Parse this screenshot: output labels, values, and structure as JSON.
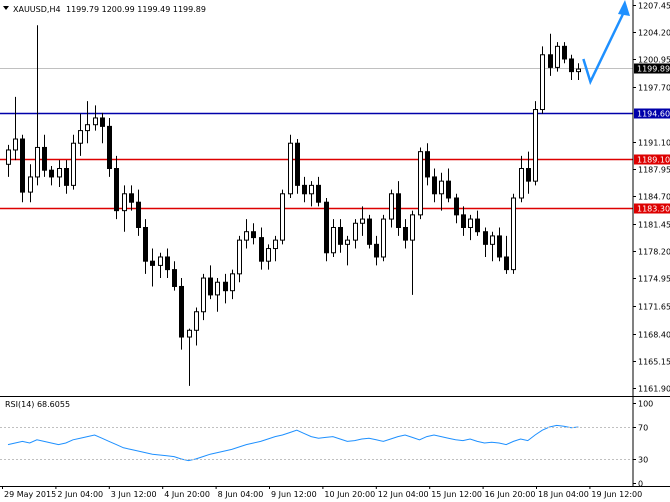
{
  "header": {
    "symbol": "XAUUSD,H4",
    "ohlc": "1199.79 1200.99 1199.49 1199.89"
  },
  "chart_data": {
    "type": "candlestick",
    "price_ticks": [
      "1207.45",
      "1204.20",
      "1200.95",
      "1197.70",
      "1191.10",
      "1187.95",
      "1184.70",
      "1181.45",
      "1178.20",
      "1174.95",
      "1171.65",
      "1168.40",
      "1165.15",
      "1161.90"
    ],
    "ylim": [
      1161.0,
      1208.0
    ],
    "current_price": {
      "label": "1199.89",
      "value": 1199.89
    },
    "levels": [
      {
        "label": "1194.60",
        "value": 1194.6,
        "color": "#0000aa"
      },
      {
        "label": "1189.10",
        "value": 1189.1,
        "color": "#dd0000"
      },
      {
        "label": "1183.30",
        "value": 1183.3,
        "color": "#dd0000"
      }
    ],
    "time_labels": [
      "29 May 2015",
      "2 Jun 04:00",
      "3 Jun 12:00",
      "4 Jun 20:00",
      "8 Jun 04:00",
      "9 Jun 12:00",
      "10 Jun 20:00",
      "12 Jun 04:00",
      "15 Jun 12:00",
      "16 Jun 20:00",
      "18 Jun 04:00",
      "19 Jun 12:00"
    ],
    "candles": [
      [
        1188.5,
        1190.8,
        1187.0,
        1190.2
      ],
      [
        1190.2,
        1196.5,
        1189.0,
        1191.5
      ],
      [
        1191.5,
        1192.0,
        1184.0,
        1185.2
      ],
      [
        1185.2,
        1188.5,
        1184.0,
        1187.0
      ],
      [
        1187.0,
        1205.0,
        1186.0,
        1190.5
      ],
      [
        1190.5,
        1192.0,
        1187.0,
        1187.8
      ],
      [
        1187.8,
        1188.3,
        1186.0,
        1187.0
      ],
      [
        1187.0,
        1189.0,
        1185.8,
        1188.0
      ],
      [
        1188.0,
        1189.0,
        1185.0,
        1186.0
      ],
      [
        1186.0,
        1192.0,
        1185.5,
        1191.0
      ],
      [
        1191.0,
        1194.5,
        1189.5,
        1192.5
      ],
      [
        1192.5,
        1196.0,
        1191.0,
        1193.2
      ],
      [
        1193.2,
        1195.5,
        1192.5,
        1194.0
      ],
      [
        1194.0,
        1194.6,
        1191.0,
        1193.0
      ],
      [
        1193.0,
        1194.0,
        1187.0,
        1188.0
      ],
      [
        1188.0,
        1189.5,
        1182.0,
        1183.0
      ],
      [
        1183.0,
        1186.0,
        1180.5,
        1185.0
      ],
      [
        1185.0,
        1186.0,
        1183.0,
        1184.0
      ],
      [
        1184.0,
        1185.5,
        1180.0,
        1181.0
      ],
      [
        1181.0,
        1182.0,
        1175.5,
        1177.0
      ],
      [
        1177.0,
        1178.5,
        1174.0,
        1176.5
      ],
      [
        1176.5,
        1178.0,
        1175.0,
        1177.5
      ],
      [
        1177.5,
        1178.5,
        1175.0,
        1176.0
      ],
      [
        1176.0,
        1177.0,
        1173.5,
        1174.0
      ],
      [
        1174.0,
        1175.0,
        1166.5,
        1168.0
      ],
      [
        1168.0,
        1169.0,
        1162.2,
        1168.8
      ],
      [
        1168.8,
        1171.5,
        1167.0,
        1171.0
      ],
      [
        1171.0,
        1175.5,
        1170.0,
        1175.0
      ],
      [
        1175.0,
        1176.5,
        1172.5,
        1173.0
      ],
      [
        1173.0,
        1175.0,
        1171.0,
        1174.5
      ],
      [
        1174.5,
        1175.5,
        1172.0,
        1173.5
      ],
      [
        1173.5,
        1176.0,
        1172.5,
        1175.5
      ],
      [
        1175.5,
        1180.0,
        1174.5,
        1179.5
      ],
      [
        1179.5,
        1182.0,
        1178.5,
        1180.5
      ],
      [
        1180.5,
        1181.5,
        1179.0,
        1179.8
      ],
      [
        1179.8,
        1181.0,
        1176.0,
        1177.0
      ],
      [
        1177.0,
        1179.0,
        1176.0,
        1178.5
      ],
      [
        1178.5,
        1180.0,
        1177.0,
        1179.5
      ],
      [
        1179.5,
        1185.5,
        1179.0,
        1185.0
      ],
      [
        1185.0,
        1192.0,
        1184.5,
        1191.0
      ],
      [
        1191.0,
        1191.5,
        1185.0,
        1186.0
      ],
      [
        1186.0,
        1187.0,
        1184.0,
        1185.0
      ],
      [
        1185.0,
        1186.5,
        1183.5,
        1186.0
      ],
      [
        1186.0,
        1187.0,
        1183.5,
        1184.0
      ],
      [
        1184.0,
        1184.5,
        1177.0,
        1178.0
      ],
      [
        1178.0,
        1182.0,
        1177.5,
        1181.0
      ],
      [
        1181.0,
        1182.0,
        1178.0,
        1179.0
      ],
      [
        1179.0,
        1180.0,
        1176.5,
        1179.5
      ],
      [
        1179.5,
        1182.0,
        1178.5,
        1181.5
      ],
      [
        1181.5,
        1183.5,
        1180.0,
        1182.0
      ],
      [
        1182.0,
        1182.5,
        1178.5,
        1179.0
      ],
      [
        1179.0,
        1180.0,
        1176.5,
        1177.5
      ],
      [
        1177.5,
        1182.5,
        1177.0,
        1182.0
      ],
      [
        1182.0,
        1185.5,
        1181.0,
        1185.0
      ],
      [
        1185.0,
        1186.5,
        1180.0,
        1181.0
      ],
      [
        1181.0,
        1182.0,
        1178.5,
        1179.5
      ],
      [
        1179.5,
        1183.0,
        1173.0,
        1182.5
      ],
      [
        1182.5,
        1190.5,
        1182.0,
        1190.0
      ],
      [
        1190.0,
        1191.0,
        1186.0,
        1187.0
      ],
      [
        1187.0,
        1188.0,
        1184.0,
        1185.0
      ],
      [
        1185.0,
        1187.5,
        1183.0,
        1186.5
      ],
      [
        1186.5,
        1188.0,
        1184.0,
        1184.5
      ],
      [
        1184.5,
        1185.0,
        1181.5,
        1182.5
      ],
      [
        1182.5,
        1183.5,
        1180.0,
        1181.0
      ],
      [
        1181.0,
        1182.5,
        1179.5,
        1182.0
      ],
      [
        1182.0,
        1183.0,
        1180.0,
        1180.5
      ],
      [
        1180.5,
        1181.0,
        1177.5,
        1179.0
      ],
      [
        1179.0,
        1180.5,
        1177.0,
        1180.0
      ],
      [
        1180.0,
        1181.0,
        1177.0,
        1177.5
      ],
      [
        1177.5,
        1180.0,
        1175.5,
        1176.0
      ],
      [
        1176.0,
        1185.0,
        1175.5,
        1184.5
      ],
      [
        1184.5,
        1189.5,
        1184.0,
        1188.0
      ],
      [
        1188.0,
        1190.0,
        1185.0,
        1186.5
      ],
      [
        1186.5,
        1196.0,
        1186.0,
        1195.0
      ],
      [
        1195.0,
        1202.5,
        1194.5,
        1201.5
      ],
      [
        1201.5,
        1204.0,
        1199.0,
        1200.0
      ],
      [
        1200.0,
        1203.0,
        1199.5,
        1202.5
      ],
      [
        1202.5,
        1203.0,
        1200.5,
        1201.0
      ],
      [
        1201.0,
        1201.5,
        1198.5,
        1199.5
      ],
      [
        1199.5,
        1200.5,
        1198.5,
        1199.8
      ]
    ],
    "rsi": {
      "label": "RSI(14) 68.6055",
      "ticks": [
        "100",
        "70",
        "30",
        "0"
      ],
      "ylim": [
        0,
        100
      ],
      "values": [
        48,
        50,
        52,
        50,
        54,
        52,
        50,
        48,
        50,
        54,
        56,
        58,
        60,
        56,
        52,
        48,
        44,
        42,
        40,
        38,
        36,
        35,
        34,
        33,
        30,
        28,
        30,
        33,
        36,
        38,
        40,
        42,
        45,
        48,
        50,
        52,
        55,
        58,
        60,
        63,
        66,
        62,
        58,
        56,
        57,
        58,
        55,
        52,
        53,
        55,
        56,
        54,
        52,
        55,
        58,
        60,
        57,
        54,
        58,
        60,
        58,
        56,
        54,
        53,
        55,
        52,
        50,
        51,
        50,
        48,
        52,
        55,
        53,
        60,
        66,
        70,
        72,
        71,
        69,
        70
      ]
    },
    "forecast_arrow": {
      "from": 1198.3,
      "to": 1208.0
    }
  },
  "colors": {
    "bull_fill": "#ffffff",
    "bear_fill": "#000000",
    "candle_outline": "#000000",
    "rsi_line": "#1e90ff",
    "arrow": "#1e90ff",
    "support_red": "#dd0000",
    "resist_blue": "#0000aa",
    "current_tag": "#000000"
  }
}
